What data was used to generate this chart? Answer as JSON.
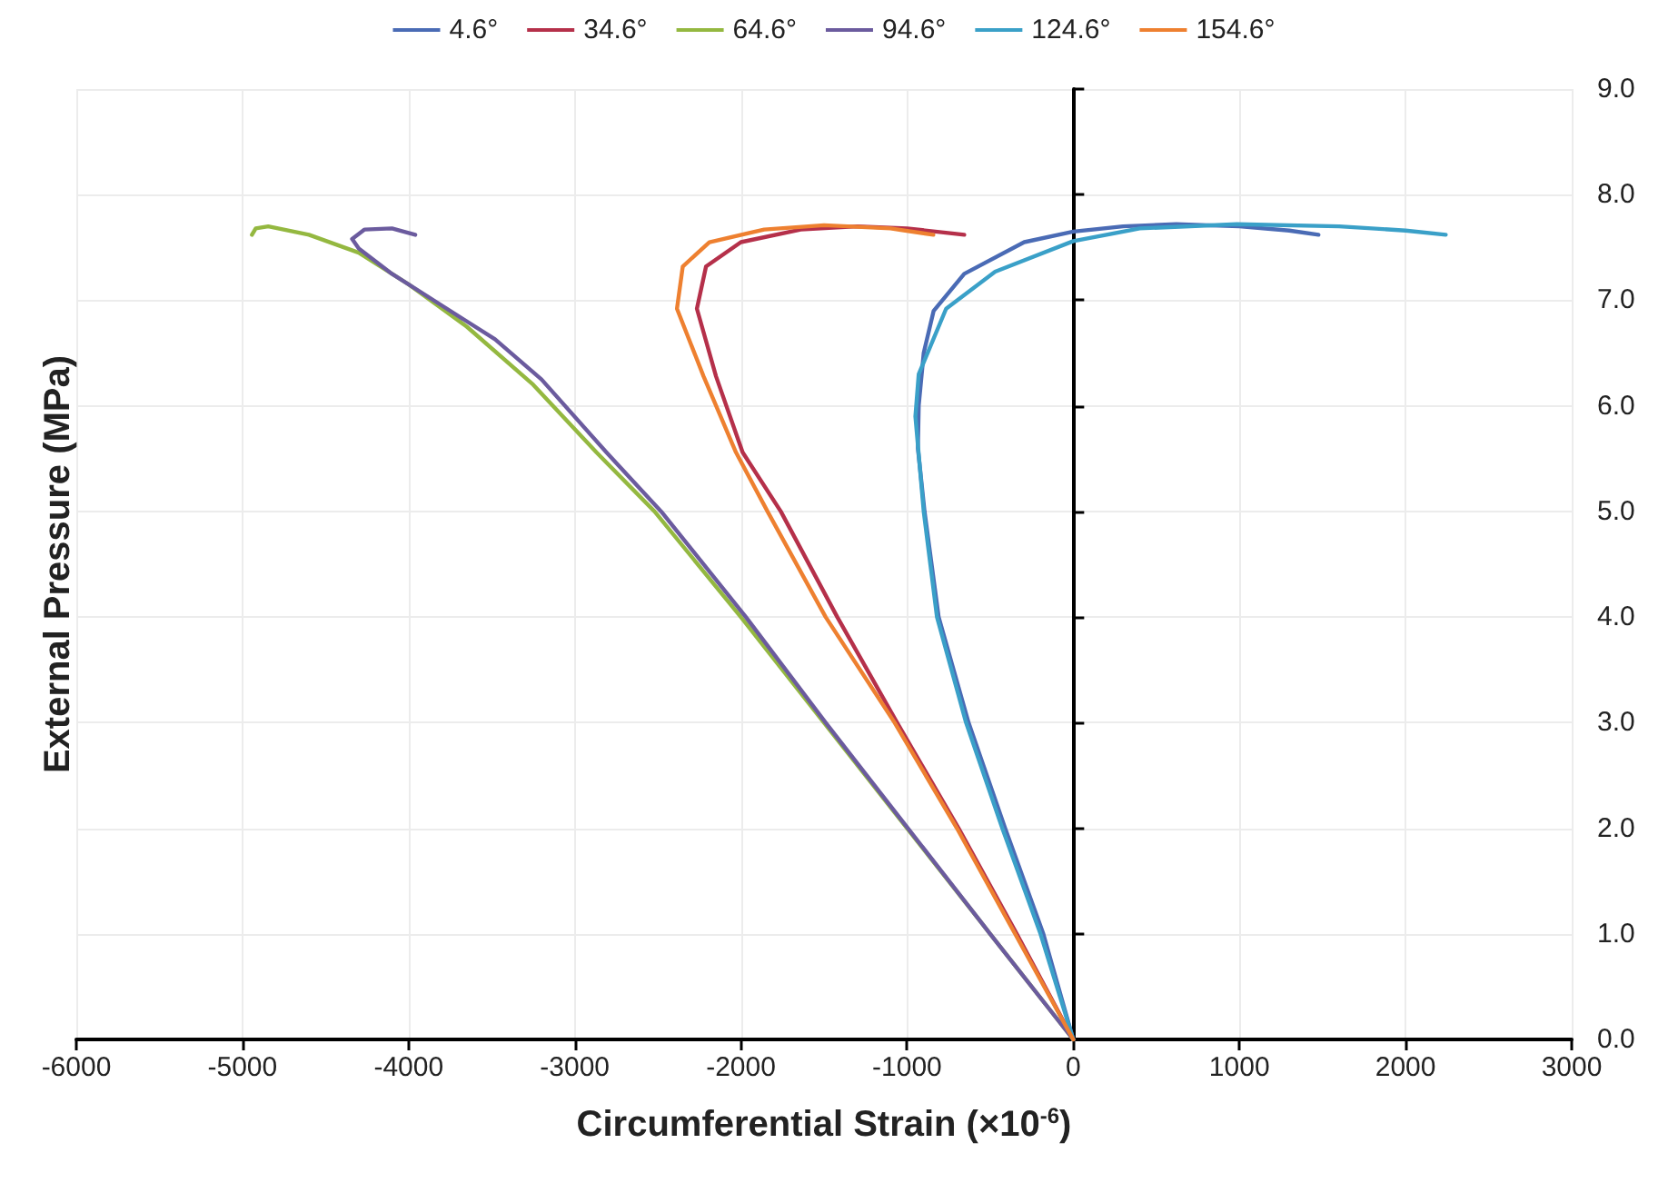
{
  "chart_data": {
    "type": "line",
    "xlabel": "Circumferential Strain (×10$^{-6}$)",
    "ylabel": "External Pressure (MPa)",
    "xlim": [
      -6000,
      3000
    ],
    "xticks": [
      -6000,
      -5000,
      -4000,
      -3000,
      -2000,
      -1000,
      0,
      1000,
      2000,
      3000
    ],
    "ylim": [
      0,
      9
    ],
    "yticks": [
      {
        "value": 0,
        "label": "0.0"
      },
      {
        "value": 1,
        "label": "1.0"
      },
      {
        "value": 2,
        "label": "2.0"
      },
      {
        "value": 3,
        "label": "3.0"
      },
      {
        "value": 4,
        "label": "4.0"
      },
      {
        "value": 5,
        "label": "5.0"
      },
      {
        "value": 6,
        "label": "6.0"
      },
      {
        "value": 7,
        "label": "7.0"
      },
      {
        "value": 8,
        "label": "8.0"
      },
      {
        "value": 9,
        "label": "9.0"
      }
    ],
    "grid": true,
    "legend": "top",
    "marker": "none",
    "line_style": "solid",
    "series": [
      {
        "name": "4.6°",
        "color": "#4a6bb5",
        "x": [
          0,
          -180,
          -410,
          -630,
          -810,
          -895,
          -935,
          -930,
          -900,
          -840,
          -656,
          -295,
          0,
          300,
          620,
          1000,
          1300,
          1476
        ],
        "values": [
          0,
          1,
          2,
          3,
          4,
          5,
          5.6,
          6.0,
          6.5,
          6.9,
          7.25,
          7.55,
          7.65,
          7.7,
          7.72,
          7.7,
          7.66,
          7.62
        ]
      },
      {
        "name": "34.6°",
        "color": "#b5304a",
        "x": [
          0,
          -340,
          -690,
          -1060,
          -1420,
          -1760,
          -1990,
          -2150,
          -2265,
          -2210,
          -2000,
          -1640,
          -1300,
          -1000,
          -656
        ],
        "values": [
          0,
          1,
          2,
          3,
          4,
          5,
          5.56,
          6.28,
          6.92,
          7.32,
          7.55,
          7.67,
          7.7,
          7.68,
          7.62
        ]
      },
      {
        "name": "64.6°",
        "color": "#94b840",
        "x": [
          0,
          -500,
          -1000,
          -1500,
          -2000,
          -2520,
          -2870,
          -3250,
          -3650,
          -4000,
          -4300,
          -4600,
          -4845,
          -4920,
          -4943
        ],
        "values": [
          0,
          1,
          2,
          3,
          4,
          5,
          5.56,
          6.2,
          6.75,
          7.15,
          7.45,
          7.62,
          7.7,
          7.68,
          7.62
        ]
      },
      {
        "name": "94.6°",
        "color": "#6b5b9e",
        "x": [
          0,
          -500,
          -995,
          -1490,
          -1970,
          -2480,
          -2810,
          -3200,
          -3480,
          -3800,
          -4100,
          -4300,
          -4340,
          -4265,
          -4100,
          -3960
        ],
        "values": [
          0,
          1,
          2,
          3,
          4,
          5,
          5.56,
          6.25,
          6.63,
          6.95,
          7.25,
          7.49,
          7.58,
          7.67,
          7.68,
          7.62
        ]
      },
      {
        "name": "124.6°",
        "color": "#3aa0c8",
        "x": [
          0,
          -197,
          -427,
          -645,
          -820,
          -900,
          -950,
          -930,
          -765,
          -470,
          0,
          400,
          985,
          1600,
          2000,
          2242
        ],
        "values": [
          0,
          1,
          2,
          3,
          4,
          5,
          5.9,
          6.3,
          6.92,
          7.27,
          7.56,
          7.68,
          7.72,
          7.7,
          7.66,
          7.62
        ]
      },
      {
        "name": "154.6°",
        "color": "#ee8030",
        "x": [
          0,
          -350,
          -700,
          -1075,
          -1490,
          -1840,
          -2030,
          -2225,
          -2385,
          -2350,
          -2190,
          -1860,
          -1500,
          -1100,
          -842
        ],
        "values": [
          0,
          1,
          2,
          3,
          4,
          5,
          5.56,
          6.28,
          6.92,
          7.32,
          7.55,
          7.67,
          7.71,
          7.68,
          7.62
        ]
      }
    ]
  }
}
